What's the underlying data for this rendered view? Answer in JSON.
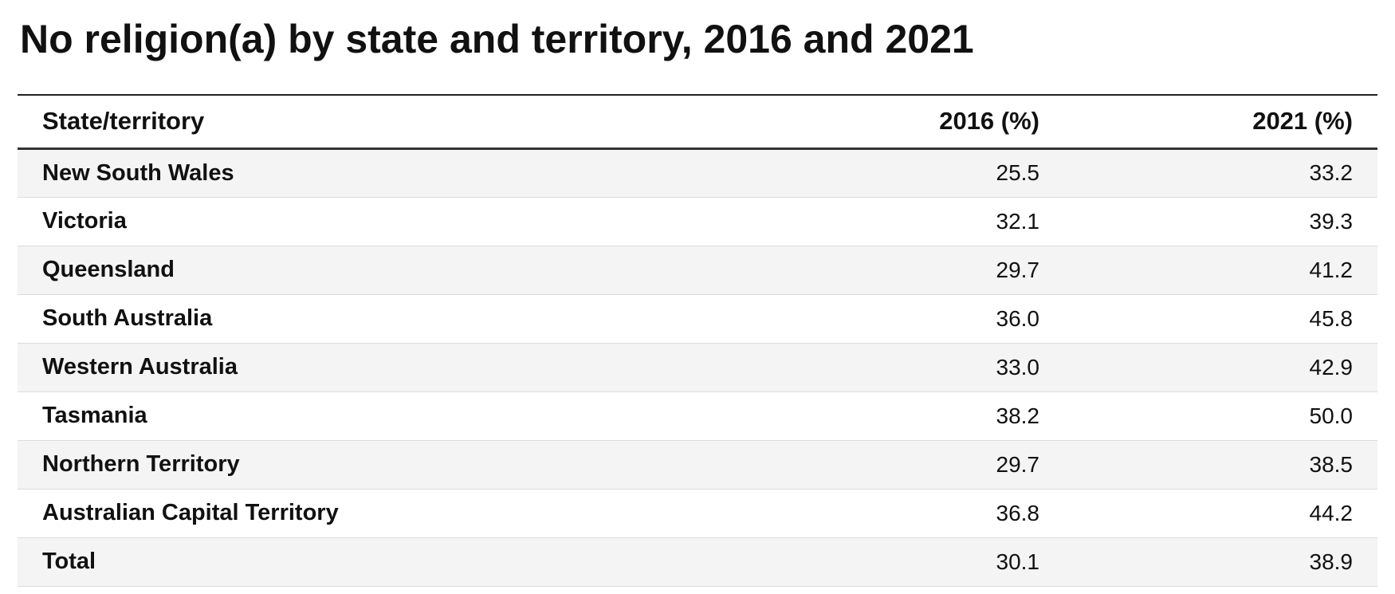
{
  "title": "No religion(a) by state and territory, 2016 and 2021",
  "table": {
    "headers": [
      "State/territory",
      "2016 (%)",
      "2021 (%)"
    ],
    "rows": [
      [
        "New South Wales",
        "25.5",
        "33.2"
      ],
      [
        "Victoria",
        "32.1",
        "39.3"
      ],
      [
        "Queensland",
        "29.7",
        "41.2"
      ],
      [
        "South Australia",
        "36.0",
        "45.8"
      ],
      [
        "Western Australia",
        "33.0",
        "42.9"
      ],
      [
        "Tasmania",
        "38.2",
        "50.0"
      ],
      [
        "Northern Territory",
        "29.7",
        "38.5"
      ],
      [
        "Australian Capital Territory",
        "36.8",
        "44.2"
      ],
      [
        "Total",
        "30.1",
        "38.9"
      ]
    ]
  },
  "colors": {
    "text": "#111111",
    "row_stripe": "#f4f4f4",
    "rule": "#222222"
  }
}
